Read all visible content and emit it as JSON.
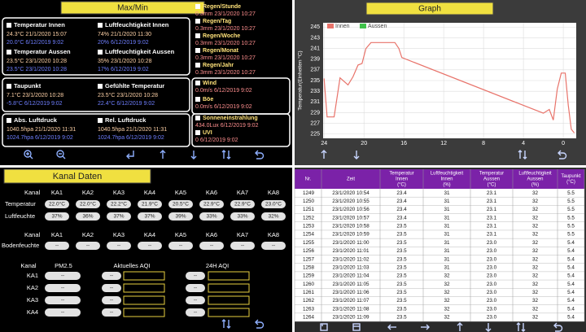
{
  "maxmin": {
    "title": "Max/Min",
    "items": [
      {
        "label": "Temperatur Innen",
        "max": "24.3°C 21/1/2020 15:07",
        "min": "20.0°C 6/12/2019 9:02"
      },
      {
        "label": "Luftfeuchtigkeit Innen",
        "max": "74% 21/1/2020 11:30",
        "min": "20% 6/12/2019 9:02"
      },
      {
        "label": "Temperatur Aussen",
        "max": "23.5°C 23/1/2020 10:28",
        "min": "23.5°C 23/1/2020 10:28"
      },
      {
        "label": "Luftfeuchtigkeit Aussen",
        "max": "35% 23/1/2020 10:28",
        "min": "17% 6/12/2019 9:02"
      },
      {
        "label": "Taupunkt",
        "max": "7.1°C 23/1/2020 10:28",
        "min": "-5.8°C 6/12/2019 9:02"
      },
      {
        "label": "Gefühlte Temperatur",
        "max": "23.5°C 23/1/2020 10:28",
        "min": "22.4°C 6/12/2019 9:02"
      },
      {
        "label": "Abs. Luftdruck",
        "max": "1040.5hpa 21/1/2020 11:31",
        "min": "1024.7hpa 6/12/2019 9:02"
      },
      {
        "label": "Rel. Luftdruck",
        "max": "1040.5hpa 21/1/2020 11:31",
        "min": "1024.7hpa 6/12/2019 9:02"
      }
    ],
    "side": [
      {
        "label": "Regen/Stunde",
        "value": "0.3mm 23/1/2020 10:27"
      },
      {
        "label": "Regen/Tag",
        "value": "0.3mm 23/1/2020 10:27"
      },
      {
        "label": "Regen/Woche",
        "value": "0.3mm 23/1/2020 10:27"
      },
      {
        "label": "Regen/Monat",
        "value": "0.3mm 23/1/2020 10:27"
      },
      {
        "label": "Regen/Jahr",
        "value": "0.3mm 23/1/2020 10:27"
      },
      {
        "label": "Wind",
        "value": "0.0m/s 6/12/2019 9:02"
      },
      {
        "label": "Böe",
        "value": "0.0m/s 6/12/2019 9:02"
      },
      {
        "label": "Sonneneinstrahlung",
        "value": "434.0Lux 6/12/2019 9:02"
      },
      {
        "label": "UVI",
        "value": "0 6/12/2019 9:02"
      }
    ]
  },
  "chart_data": {
    "type": "line",
    "title": "Graph",
    "y_label": "Temperatur(Einheiten °C)",
    "x": [
      24.0,
      23.7,
      23.0,
      22.4,
      21.6,
      21.1,
      20.6,
      20.2,
      19.8,
      19.3,
      18.8,
      16.9,
      16.5,
      16.2,
      2.0,
      1.4,
      1.0,
      0.6,
      0.2,
      -0.2,
      -0.5,
      -0.8,
      -1.1
    ],
    "series": [
      {
        "name": "Innen",
        "color": "#e8736a",
        "values": [
          235.4,
          228.2,
          228.2,
          235.5,
          234.2,
          235.7,
          237.9,
          238.2,
          241,
          242.1,
          242.1,
          242.1,
          241,
          239.3,
          228.9,
          229.6,
          227.6,
          233.4,
          236.4,
          236.4,
          230.4,
          225.9,
          225.2
        ]
      },
      {
        "name": "Aussen",
        "color": "#3fc24a",
        "values": [
          null,
          null,
          null,
          null,
          null,
          null,
          null,
          null,
          null,
          null,
          null,
          null,
          null,
          null,
          null,
          null,
          null,
          null,
          null,
          null,
          null,
          null,
          null
        ]
      }
    ],
    "xlim": [
      24.1,
      -1.3
    ],
    "ylim": [
      224.2,
      245.8
    ],
    "xticks": [
      24,
      20,
      16,
      12,
      8,
      4,
      0
    ],
    "yticks": [
      225,
      227,
      229,
      231,
      233,
      235,
      237,
      239,
      241,
      243,
      245
    ],
    "grid": true,
    "legend": "top-left"
  },
  "kanal": {
    "title": "Kanal Daten",
    "header_label": "Kanal",
    "channels": [
      "KA1",
      "KA2",
      "KA3",
      "KA4",
      "KA5",
      "KA6",
      "KA7",
      "KA8"
    ],
    "rows": [
      {
        "label": "Temperatur",
        "values": [
          "22.0°C",
          "22.0°C",
          "22.2°C",
          "21.9°C",
          "20.5°C",
          "22.9°C",
          "22.9°C",
          "23.0°C"
        ]
      },
      {
        "label": "Luftfeuchte",
        "values": [
          "37%",
          "36%",
          "37%",
          "37%",
          "39%",
          "33%",
          "33%",
          "32%"
        ]
      }
    ],
    "soil": {
      "header_label": "Kanal",
      "channels": [
        "KA1",
        "KA2",
        "KA3",
        "KA4",
        "KA5",
        "KA6",
        "KA7",
        "KA8"
      ],
      "label": "Bodenfeuchte",
      "values": [
        "--",
        "--",
        "--",
        "--",
        "--",
        "--",
        "--",
        "--"
      ]
    },
    "aqi": {
      "header": [
        "Kanal",
        "PM2.5",
        "Aktuelles AQI",
        "24H AQI"
      ],
      "rows": [
        {
          "label": "KA1",
          "pm25": "--",
          "aqi": "--",
          "aqi24": "--"
        },
        {
          "label": "KA2",
          "pm25": "--",
          "aqi": "--",
          "aqi24": "--"
        },
        {
          "label": "KA3",
          "pm25": "--",
          "aqi": "--",
          "aqi24": "--"
        },
        {
          "label": "KA4",
          "pm25": "--",
          "aqi": "--",
          "aqi24": "--"
        }
      ]
    }
  },
  "table": {
    "columns": [
      [
        "Nr."
      ],
      [
        "Zeit"
      ],
      [
        "Temperatur",
        "Innen",
        "(°C)"
      ],
      [
        "Luftfeuchtigkeit",
        "Innen",
        "(%)"
      ],
      [
        "Temperatur",
        "Aussen",
        "(°C)"
      ],
      [
        "Luftfeuchtigkeit",
        "Aussen",
        "(%)"
      ],
      [
        "Taupunkt",
        "(°C)"
      ]
    ],
    "rows": [
      [
        "1249",
        "23/1/2020 10:54",
        "23.4",
        "31",
        "23.1",
        "32",
        "5.5"
      ],
      [
        "1250",
        "23/1/2020 10:55",
        "23.4",
        "31",
        "23.1",
        "32",
        "5.5"
      ],
      [
        "1251",
        "23/1/2020 10:56",
        "23.4",
        "31",
        "23.1",
        "32",
        "5.5"
      ],
      [
        "1252",
        "23/1/2020 10:57",
        "23.4",
        "31",
        "23.1",
        "32",
        "5.5"
      ],
      [
        "1253",
        "23/1/2020 10:58",
        "23.5",
        "31",
        "23.1",
        "32",
        "5.5"
      ],
      [
        "1254",
        "23/1/2020 10:59",
        "23.5",
        "31",
        "23.1",
        "32",
        "5.5"
      ],
      [
        "1255",
        "23/1/2020 11:00",
        "23.5",
        "31",
        "23.0",
        "32",
        "5.4"
      ],
      [
        "1256",
        "23/1/2020 11:01",
        "23.5",
        "31",
        "23.0",
        "32",
        "5.4"
      ],
      [
        "1257",
        "23/1/2020 11:02",
        "23.5",
        "31",
        "23.0",
        "32",
        "5.4"
      ],
      [
        "1258",
        "23/1/2020 11:03",
        "23.5",
        "31",
        "23.0",
        "32",
        "5.4"
      ],
      [
        "1259",
        "23/1/2020 11:04",
        "23.5",
        "32",
        "23.0",
        "32",
        "5.4"
      ],
      [
        "1260",
        "23/1/2020 11:05",
        "23.5",
        "32",
        "23.0",
        "32",
        "5.4"
      ],
      [
        "1261",
        "23/1/2020 11:06",
        "23.5",
        "32",
        "23.0",
        "32",
        "5.4"
      ],
      [
        "1262",
        "23/1/2020 11:07",
        "23.5",
        "32",
        "23.0",
        "32",
        "5.4"
      ],
      [
        "1263",
        "23/1/2020 11:08",
        "23.5",
        "32",
        "23.0",
        "32",
        "5.4"
      ],
      [
        "1264",
        "23/1/2020 11:09",
        "23.5",
        "32",
        "23.0",
        "32",
        "5.4"
      ]
    ]
  }
}
